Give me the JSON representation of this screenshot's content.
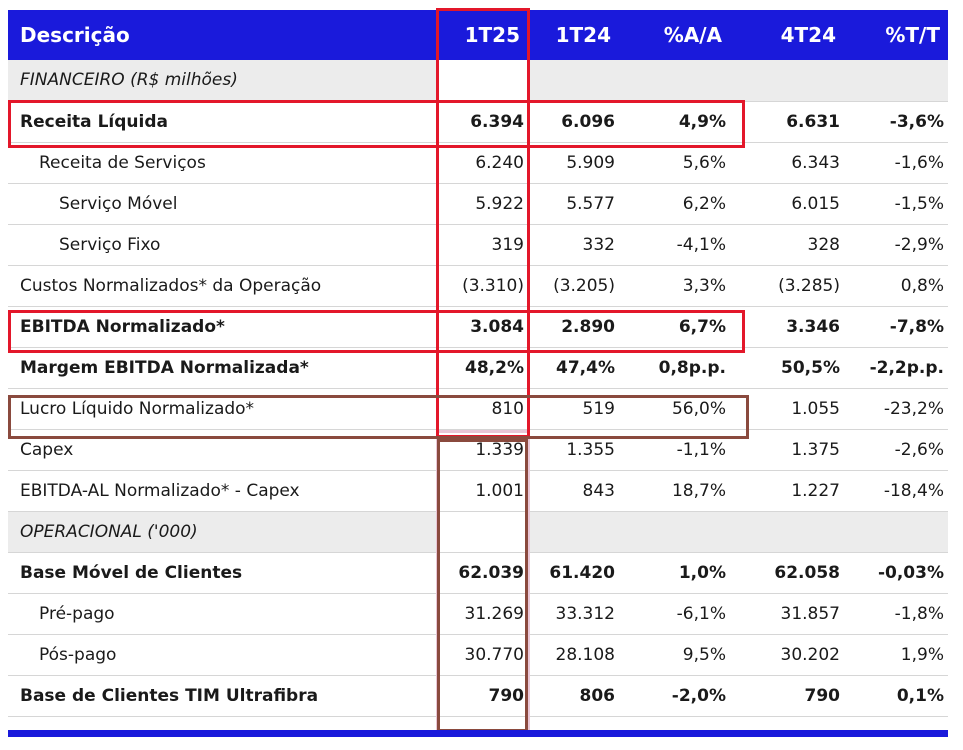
{
  "header": [
    "Descrição",
    "1T25",
    "1T24",
    "%A/A",
    "4T24",
    "%T/T"
  ],
  "rows": [
    {
      "type": "section",
      "label": "FINANCEIRO (R$ milhões)"
    },
    {
      "type": "bold",
      "indent": 0,
      "label": "Receita Líquida",
      "v": [
        "6.394",
        "6.096",
        "4,9%",
        "6.631",
        "-3,6%"
      ]
    },
    {
      "type": "normal",
      "indent": 1,
      "label": "Receita de Serviços",
      "v": [
        "6.240",
        "5.909",
        "5,6%",
        "6.343",
        "-1,6%"
      ]
    },
    {
      "type": "normal",
      "indent": 2,
      "label": "Serviço Móvel",
      "v": [
        "5.922",
        "5.577",
        "6,2%",
        "6.015",
        "-1,5%"
      ]
    },
    {
      "type": "normal",
      "indent": 2,
      "label": "Serviço Fixo",
      "v": [
        "319",
        "332",
        "-4,1%",
        "328",
        "-2,9%"
      ]
    },
    {
      "type": "normal",
      "indent": 0,
      "label": "Custos Normalizados* da Operação",
      "v": [
        "(3.310)",
        "(3.205)",
        "3,3%",
        "(3.285)",
        "0,8%"
      ]
    },
    {
      "type": "bold",
      "indent": 0,
      "label": "EBITDA Normalizado*",
      "v": [
        "3.084",
        "2.890",
        "6,7%",
        "3.346",
        "-7,8%"
      ]
    },
    {
      "type": "bold",
      "indent": 0,
      "label": "Margem EBITDA Normalizada*",
      "v": [
        "48,2%",
        "47,4%",
        "0,8p.p.",
        "50,5%",
        "-2,2p.p."
      ]
    },
    {
      "type": "normal",
      "indent": 0,
      "label": "Lucro Líquido Normalizado*",
      "v": [
        "810",
        "519",
        "56,0%",
        "1.055",
        "-23,2%"
      ]
    },
    {
      "type": "normal",
      "indent": 0,
      "label": "Capex",
      "v": [
        "1.339",
        "1.355",
        "-1,1%",
        "1.375",
        "-2,6%"
      ]
    },
    {
      "type": "normal",
      "indent": 0,
      "label": "EBITDA-AL Normalizado* - Capex",
      "v": [
        "1.001",
        "843",
        "18,7%",
        "1.227",
        "-18,4%"
      ]
    },
    {
      "type": "section",
      "label": "OPERACIONAL ('000)"
    },
    {
      "type": "bold",
      "indent": 0,
      "label": "Base Móvel de Clientes",
      "v": [
        "62.039",
        "61.420",
        "1,0%",
        "62.058",
        "-0,03%"
      ]
    },
    {
      "type": "normal",
      "indent": 1,
      "label": "Pré-pago",
      "v": [
        "31.269",
        "33.312",
        "-6,1%",
        "31.857",
        "-1,8%"
      ]
    },
    {
      "type": "normal",
      "indent": 1,
      "label": "Pós-pago",
      "v": [
        "30.770",
        "28.108",
        "9,5%",
        "30.202",
        "1,9%"
      ]
    },
    {
      "type": "bold",
      "indent": 0,
      "label": "Base de Clientes TIM Ultrafibra",
      "v": [
        "790",
        "806",
        "-2,0%",
        "790",
        "0,1%"
      ]
    }
  ],
  "colors": {
    "header_bg": "#1a1adb",
    "highlight_red": "#e3172a",
    "highlight_brown": "#8a4a3e",
    "section_bg": "#ececec"
  }
}
